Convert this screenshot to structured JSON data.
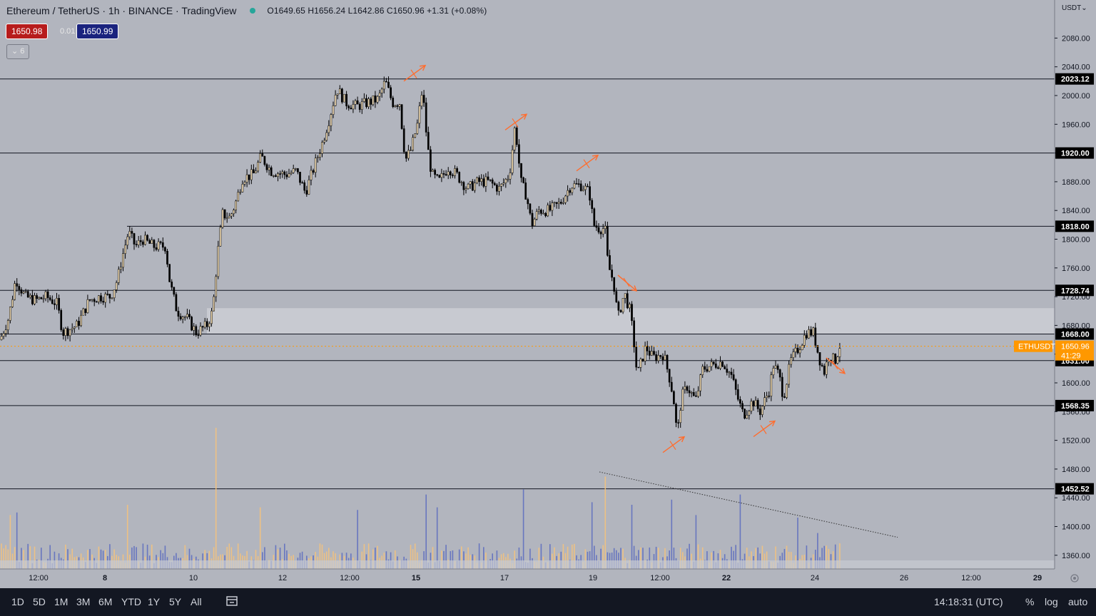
{
  "header": {
    "symbol": "Ethereum / TetherUS · 1h · BINANCE · TradingView",
    "ohlc": "O1649.65 H1656.24 L1642.86 C1650.96 +1.31 (+0.08%)"
  },
  "trade": {
    "sell": "1650.98",
    "spread": "0.01",
    "buy": "1650.99"
  },
  "indicators_collapsed": "6",
  "currency_label": "USDT",
  "chart_data": {
    "type": "candlestick",
    "title": "Ethereum / TetherUS · 1h · BINANCE",
    "y_axis": {
      "ticks": [
        "2080.00",
        "2040.00",
        "2000.00",
        "1960.00",
        "1920.00",
        "1880.00",
        "1840.00",
        "1800.00",
        "1760.00",
        "1720.00",
        "1680.00",
        "1640.00",
        "1600.00",
        "1560.00",
        "1520.00",
        "1480.00",
        "1440.00",
        "1400.00",
        "1360.00"
      ],
      "ylim": [
        1345,
        2100
      ]
    },
    "x_axis": {
      "ticks": [
        {
          "label": "12:00",
          "bold": false
        },
        {
          "label": "8",
          "bold": true
        },
        {
          "label": "10",
          "bold": false
        },
        {
          "label": "12",
          "bold": false
        },
        {
          "label": "12:00",
          "bold": false
        },
        {
          "label": "15",
          "bold": true
        },
        {
          "label": "17",
          "bold": false
        },
        {
          "label": "19",
          "bold": false
        },
        {
          "label": "12:00",
          "bold": false
        },
        {
          "label": "22",
          "bold": true
        },
        {
          "label": "24",
          "bold": false
        },
        {
          "label": "26",
          "bold": false
        },
        {
          "label": "12:00",
          "bold": false
        },
        {
          "label": "29",
          "bold": true
        }
      ]
    },
    "horizontal_levels": [
      "2023.12",
      "1920.00",
      "1818.00",
      "1728.74",
      "1668.00",
      "1631.00",
      "1568.35",
      "1452.52"
    ],
    "last_price": {
      "symbol": "ETHUSDT",
      "price": "1650.96",
      "countdown": "41:29"
    },
    "zone": {
      "from": 1668,
      "to": 1704
    },
    "anchors": [
      [
        0,
        1660
      ],
      [
        12,
        1690
      ],
      [
        22,
        1745
      ],
      [
        35,
        1720
      ],
      [
        50,
        1715
      ],
      [
        65,
        1720
      ],
      [
        80,
        1710
      ],
      [
        88,
        1670
      ],
      [
        108,
        1680
      ],
      [
        125,
        1715
      ],
      [
        140,
        1720
      ],
      [
        155,
        1720
      ],
      [
        165,
        1745
      ],
      [
        170,
        1770
      ],
      [
        180,
        1810
      ],
      [
        190,
        1790
      ],
      [
        200,
        1800
      ],
      [
        215,
        1790
      ],
      [
        232,
        1790
      ],
      [
        238,
        1740
      ],
      [
        248,
        1700
      ],
      [
        262,
        1690
      ],
      [
        275,
        1670
      ],
      [
        290,
        1680
      ],
      [
        298,
        1700
      ],
      [
        305,
        1780
      ],
      [
        312,
        1835
      ],
      [
        322,
        1830
      ],
      [
        330,
        1850
      ],
      [
        340,
        1885
      ],
      [
        355,
        1890
      ],
      [
        366,
        1915
      ],
      [
        380,
        1895
      ],
      [
        400,
        1890
      ],
      [
        415,
        1895
      ],
      [
        428,
        1865
      ],
      [
        440,
        1900
      ],
      [
        452,
        1935
      ],
      [
        462,
        1970
      ],
      [
        472,
        2010
      ],
      [
        485,
        1990
      ],
      [
        500,
        1985
      ],
      [
        515,
        1990
      ],
      [
        530,
        1995
      ],
      [
        540,
        2020
      ],
      [
        550,
        1990
      ],
      [
        560,
        1990
      ],
      [
        568,
        1910
      ],
      [
        576,
        1925
      ],
      [
        585,
        1960
      ],
      [
        592,
        2010
      ],
      [
        599,
        1930
      ],
      [
        605,
        1890
      ],
      [
        615,
        1880
      ],
      [
        628,
        1900
      ],
      [
        640,
        1890
      ],
      [
        655,
        1870
      ],
      [
        670,
        1880
      ],
      [
        685,
        1880
      ],
      [
        700,
        1870
      ],
      [
        714,
        1890
      ],
      [
        722,
        1960
      ],
      [
        730,
        1880
      ],
      [
        738,
        1860
      ],
      [
        745,
        1820
      ],
      [
        755,
        1840
      ],
      [
        770,
        1840
      ],
      [
        785,
        1850
      ],
      [
        800,
        1875
      ],
      [
        815,
        1875
      ],
      [
        826,
        1865
      ],
      [
        832,
        1820
      ],
      [
        840,
        1815
      ],
      [
        848,
        1815
      ],
      [
        852,
        1765
      ],
      [
        860,
        1740
      ],
      [
        866,
        1690
      ],
      [
        875,
        1725
      ],
      [
        883,
        1700
      ],
      [
        888,
        1660
      ],
      [
        893,
        1610
      ],
      [
        905,
        1650
      ],
      [
        915,
        1635
      ],
      [
        930,
        1640
      ],
      [
        940,
        1600
      ],
      [
        945,
        1570
      ],
      [
        949,
        1525
      ],
      [
        955,
        1580
      ],
      [
        963,
        1595
      ],
      [
        975,
        1575
      ],
      [
        985,
        1620
      ],
      [
        1000,
        1625
      ],
      [
        1012,
        1630
      ],
      [
        1025,
        1610
      ],
      [
        1035,
        1575
      ],
      [
        1042,
        1555
      ],
      [
        1055,
        1575
      ],
      [
        1065,
        1560
      ],
      [
        1078,
        1590
      ],
      [
        1084,
        1625
      ],
      [
        1092,
        1610
      ],
      [
        1098,
        1580
      ],
      [
        1108,
        1630
      ],
      [
        1120,
        1650
      ],
      [
        1130,
        1670
      ],
      [
        1140,
        1670
      ],
      [
        1148,
        1635
      ],
      [
        1155,
        1615
      ],
      [
        1162,
        1640
      ],
      [
        1170,
        1630
      ],
      [
        1178,
        1655
      ]
    ],
    "volume_spikes": [
      [
        304,
        5.5
      ],
      [
        847,
        3.6
      ],
      [
        733,
        3.1
      ],
      [
        597,
        2.9
      ],
      [
        1038,
        2.9
      ],
      [
        940,
        2.7
      ],
      [
        13,
        2.1
      ],
      [
        23,
        2.2
      ],
      [
        180,
        2.5
      ],
      [
        364,
        2.4
      ],
      [
        500,
        2.3
      ],
      [
        612,
        2.4
      ],
      [
        830,
        2.6
      ],
      [
        885,
        2.5
      ],
      [
        975,
        2.1
      ],
      [
        1117,
        2.0
      ],
      [
        1146,
        1.4
      ],
      [
        1176,
        1.0
      ]
    ],
    "trendline_volume": {
      "from": [
        840,
        1476
      ],
      "to": [
        1258,
        1385
      ]
    },
    "annotations": [
      {
        "type": "arrow",
        "at_x": 580,
        "price": 2030,
        "dir": "up-right"
      },
      {
        "type": "arrow",
        "at_x": 722,
        "price": 1962,
        "dir": "up-right"
      },
      {
        "type": "arrow",
        "at_x": 822,
        "price": 1905,
        "dir": "up-right"
      },
      {
        "type": "arrow",
        "at_x": 878,
        "price": 1740,
        "dir": "down-right"
      },
      {
        "type": "arrow",
        "at_x": 1170,
        "price": 1625,
        "dir": "down-right"
      },
      {
        "type": "arrow",
        "at_x": 943,
        "price": 1513,
        "dir": "up-right"
      },
      {
        "type": "arrow",
        "at_x": 1070,
        "price": 1535,
        "dir": "up-right"
      }
    ]
  },
  "bottom_bar": {
    "ranges": [
      "1D",
      "5D",
      "1M",
      "3M",
      "6M",
      "YTD",
      "1Y",
      "5Y",
      "All"
    ],
    "time": "14:18:31 (UTC)",
    "percent": "%",
    "log": "log",
    "auto": "auto"
  },
  "colors": {
    "bg": "#b2b5be",
    "candle": "#000000",
    "candle_up": "#efd9b0",
    "accent": "#ff9800",
    "arrow": "#ff6d2e"
  }
}
